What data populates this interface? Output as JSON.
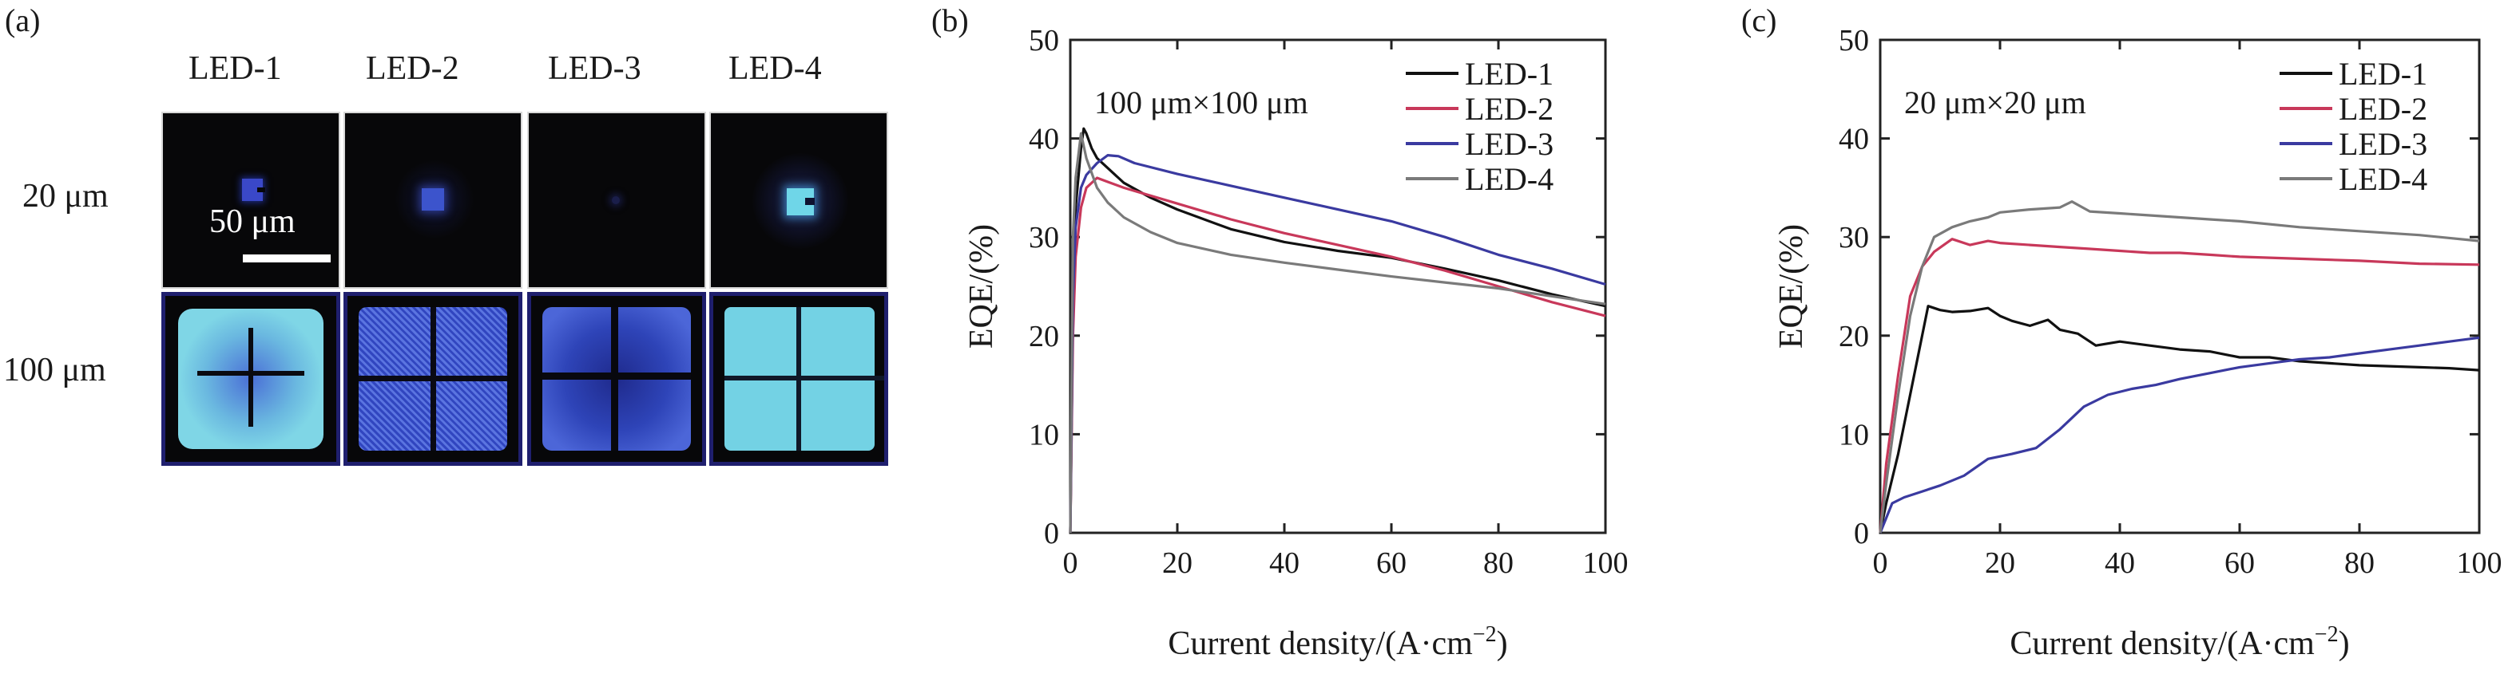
{
  "panels": {
    "a": {
      "letter": "(a)",
      "columns": [
        "LED-1",
        "LED-2",
        "LED-3",
        "LED-4"
      ],
      "rows": [
        "20 μm",
        "100 μm"
      ],
      "scale_bar_label": "50 μm",
      "colors": {
        "deep_blue": "#3a48c8",
        "cyan": "#6fd6e8",
        "frame": "#1f1f6e",
        "dark_bg": "#070709"
      },
      "tiles": {
        "20": [
          {
            "led": "LED-1",
            "emission": "small blue square"
          },
          {
            "led": "LED-2",
            "emission": "small blue square with halo"
          },
          {
            "led": "LED-3",
            "emission": "very dim spot"
          },
          {
            "led": "LED-4",
            "emission": "cyan square with halo"
          }
        ],
        "100": [
          {
            "led": "LED-1",
            "emission": "cyan pad with blue center"
          },
          {
            "led": "LED-2",
            "emission": "speckled blue pad"
          },
          {
            "led": "LED-3",
            "emission": "blue pad"
          },
          {
            "led": "LED-4",
            "emission": "uniform cyan pad"
          }
        ]
      }
    },
    "b": {
      "letter": "(b)"
    },
    "c": {
      "letter": "(c)"
    }
  },
  "chart_data": [
    {
      "id": "b",
      "type": "line",
      "annotation": "100 μm×100 μm",
      "xlabel": "Current density/(A·cm",
      "xlabel_sup": "−2",
      "xlabel_close": ")",
      "ylabel": "EQE/(%)",
      "xlim": [
        0,
        100
      ],
      "ylim": [
        0,
        50
      ],
      "xticks": [
        "0",
        "20",
        "40",
        "60",
        "80",
        "100"
      ],
      "yticks": [
        "0",
        "10",
        "20",
        "30",
        "40",
        "50"
      ],
      "grid": false,
      "legend_position": "top-right",
      "series": [
        {
          "name": "LED-1",
          "color": "#111111",
          "points": [
            [
              0,
              0
            ],
            [
              0.5,
              22
            ],
            [
              1,
              33
            ],
            [
              2,
              39
            ],
            [
              2.5,
              41
            ],
            [
              3,
              40.5
            ],
            [
              4,
              39
            ],
            [
              5,
              38
            ],
            [
              7,
              37
            ],
            [
              10,
              35.5
            ],
            [
              15,
              34
            ],
            [
              20,
              32.8
            ],
            [
              30,
              30.8
            ],
            [
              40,
              29.5
            ],
            [
              50,
              28.6
            ],
            [
              60,
              27.9
            ],
            [
              70,
              26.8
            ],
            [
              80,
              25.6
            ],
            [
              90,
              24.2
            ],
            [
              100,
              23
            ]
          ]
        },
        {
          "name": "LED-2",
          "color": "#c8385a",
          "points": [
            [
              0,
              0
            ],
            [
              0.5,
              20
            ],
            [
              1,
              28
            ],
            [
              2,
              33
            ],
            [
              3,
              35
            ],
            [
              5,
              36
            ],
            [
              7,
              35.6
            ],
            [
              10,
              35
            ],
            [
              15,
              34.2
            ],
            [
              20,
              33.4
            ],
            [
              30,
              31.8
            ],
            [
              40,
              30.4
            ],
            [
              50,
              29.2
            ],
            [
              60,
              28
            ],
            [
              70,
              26.6
            ],
            [
              80,
              25
            ],
            [
              90,
              23.4
            ],
            [
              100,
              22
            ]
          ]
        },
        {
          "name": "LED-3",
          "color": "#3a3aa0",
          "points": [
            [
              0,
              0
            ],
            [
              0.5,
              24
            ],
            [
              1,
              31
            ],
            [
              2,
              35
            ],
            [
              3,
              36.3
            ],
            [
              5,
              37.5
            ],
            [
              7,
              38.3
            ],
            [
              9,
              38.2
            ],
            [
              12,
              37.5
            ],
            [
              20,
              36.4
            ],
            [
              30,
              35.2
            ],
            [
              40,
              34
            ],
            [
              50,
              32.8
            ],
            [
              60,
              31.6
            ],
            [
              70,
              30
            ],
            [
              80,
              28.2
            ],
            [
              90,
              26.8
            ],
            [
              100,
              25.2
            ]
          ]
        },
        {
          "name": "LED-4",
          "color": "#7a7a7a",
          "points": [
            [
              0,
              0
            ],
            [
              0.5,
              30
            ],
            [
              1,
              36
            ],
            [
              2,
              40.5
            ],
            [
              3,
              38
            ],
            [
              5,
              35
            ],
            [
              7,
              33.5
            ],
            [
              10,
              32
            ],
            [
              15,
              30.5
            ],
            [
              20,
              29.4
            ],
            [
              30,
              28.2
            ],
            [
              40,
              27.4
            ],
            [
              50,
              26.7
            ],
            [
              60,
              26
            ],
            [
              70,
              25.4
            ],
            [
              80,
              24.8
            ],
            [
              90,
              24
            ],
            [
              100,
              23.2
            ]
          ]
        }
      ]
    },
    {
      "id": "c",
      "type": "line",
      "annotation": "20 μm×20 μm",
      "xlabel": "Current density/(A·cm",
      "xlabel_sup": "−2",
      "xlabel_close": ")",
      "ylabel": "EQE/(%)",
      "xlim": [
        0,
        100
      ],
      "ylim": [
        0,
        50
      ],
      "xticks": [
        "0",
        "20",
        "40",
        "60",
        "80",
        "100"
      ],
      "yticks": [
        "0",
        "10",
        "20",
        "30",
        "40",
        "50"
      ],
      "grid": false,
      "legend_position": "top-right",
      "series": [
        {
          "name": "LED-1",
          "color": "#111111",
          "points": [
            [
              0,
              0
            ],
            [
              1,
              3
            ],
            [
              3,
              8
            ],
            [
              5,
              14
            ],
            [
              7,
              20
            ],
            [
              8,
              23
            ],
            [
              10,
              22.6
            ],
            [
              12,
              22.4
            ],
            [
              15,
              22.5
            ],
            [
              18,
              22.8
            ],
            [
              20,
              22
            ],
            [
              22,
              21.5
            ],
            [
              25,
              21
            ],
            [
              28,
              21.6
            ],
            [
              30,
              20.6
            ],
            [
              33,
              20.2
            ],
            [
              36,
              19
            ],
            [
              40,
              19.4
            ],
            [
              45,
              19
            ],
            [
              50,
              18.6
            ],
            [
              55,
              18.4
            ],
            [
              60,
              17.8
            ],
            [
              65,
              17.8
            ],
            [
              70,
              17.4
            ],
            [
              75,
              17.2
            ],
            [
              80,
              17
            ],
            [
              85,
              16.9
            ],
            [
              90,
              16.8
            ],
            [
              95,
              16.7
            ],
            [
              100,
              16.5
            ]
          ]
        },
        {
          "name": "LED-2",
          "color": "#c8385a",
          "points": [
            [
              0,
              0
            ],
            [
              1,
              7
            ],
            [
              3,
              16
            ],
            [
              5,
              24
            ],
            [
              7,
              27
            ],
            [
              9,
              28.5
            ],
            [
              12,
              29.8
            ],
            [
              15,
              29.2
            ],
            [
              18,
              29.6
            ],
            [
              20,
              29.4
            ],
            [
              25,
              29.2
            ],
            [
              30,
              29
            ],
            [
              35,
              28.8
            ],
            [
              40,
              28.6
            ],
            [
              45,
              28.4
            ],
            [
              50,
              28.4
            ],
            [
              55,
              28.2
            ],
            [
              60,
              28
            ],
            [
              70,
              27.8
            ],
            [
              80,
              27.6
            ],
            [
              90,
              27.3
            ],
            [
              100,
              27.2
            ]
          ]
        },
        {
          "name": "LED-3",
          "color": "#3a3aa0",
          "points": [
            [
              0,
              0
            ],
            [
              1,
              1.5
            ],
            [
              2,
              3
            ],
            [
              4,
              3.6
            ],
            [
              6,
              4
            ],
            [
              10,
              4.8
            ],
            [
              14,
              5.8
            ],
            [
              18,
              7.5
            ],
            [
              22,
              8
            ],
            [
              26,
              8.6
            ],
            [
              30,
              10.5
            ],
            [
              34,
              12.8
            ],
            [
              38,
              14
            ],
            [
              42,
              14.6
            ],
            [
              46,
              15
            ],
            [
              50,
              15.6
            ],
            [
              55,
              16.2
            ],
            [
              60,
              16.8
            ],
            [
              65,
              17.2
            ],
            [
              70,
              17.6
            ],
            [
              75,
              17.8
            ],
            [
              80,
              18.2
            ],
            [
              85,
              18.6
            ],
            [
              90,
              19
            ],
            [
              95,
              19.4
            ],
            [
              100,
              19.8
            ]
          ]
        },
        {
          "name": "LED-4",
          "color": "#7a7a7a",
          "points": [
            [
              0,
              0
            ],
            [
              1,
              5
            ],
            [
              3,
              14
            ],
            [
              5,
              22
            ],
            [
              7,
              27
            ],
            [
              9,
              30
            ],
            [
              12,
              31
            ],
            [
              15,
              31.6
            ],
            [
              18,
              32
            ],
            [
              20,
              32.5
            ],
            [
              25,
              32.8
            ],
            [
              30,
              33
            ],
            [
              32,
              33.6
            ],
            [
              35,
              32.6
            ],
            [
              40,
              32.4
            ],
            [
              45,
              32.2
            ],
            [
              50,
              32
            ],
            [
              55,
              31.8
            ],
            [
              60,
              31.6
            ],
            [
              70,
              31
            ],
            [
              80,
              30.6
            ],
            [
              90,
              30.2
            ],
            [
              100,
              29.6
            ]
          ]
        }
      ]
    }
  ]
}
